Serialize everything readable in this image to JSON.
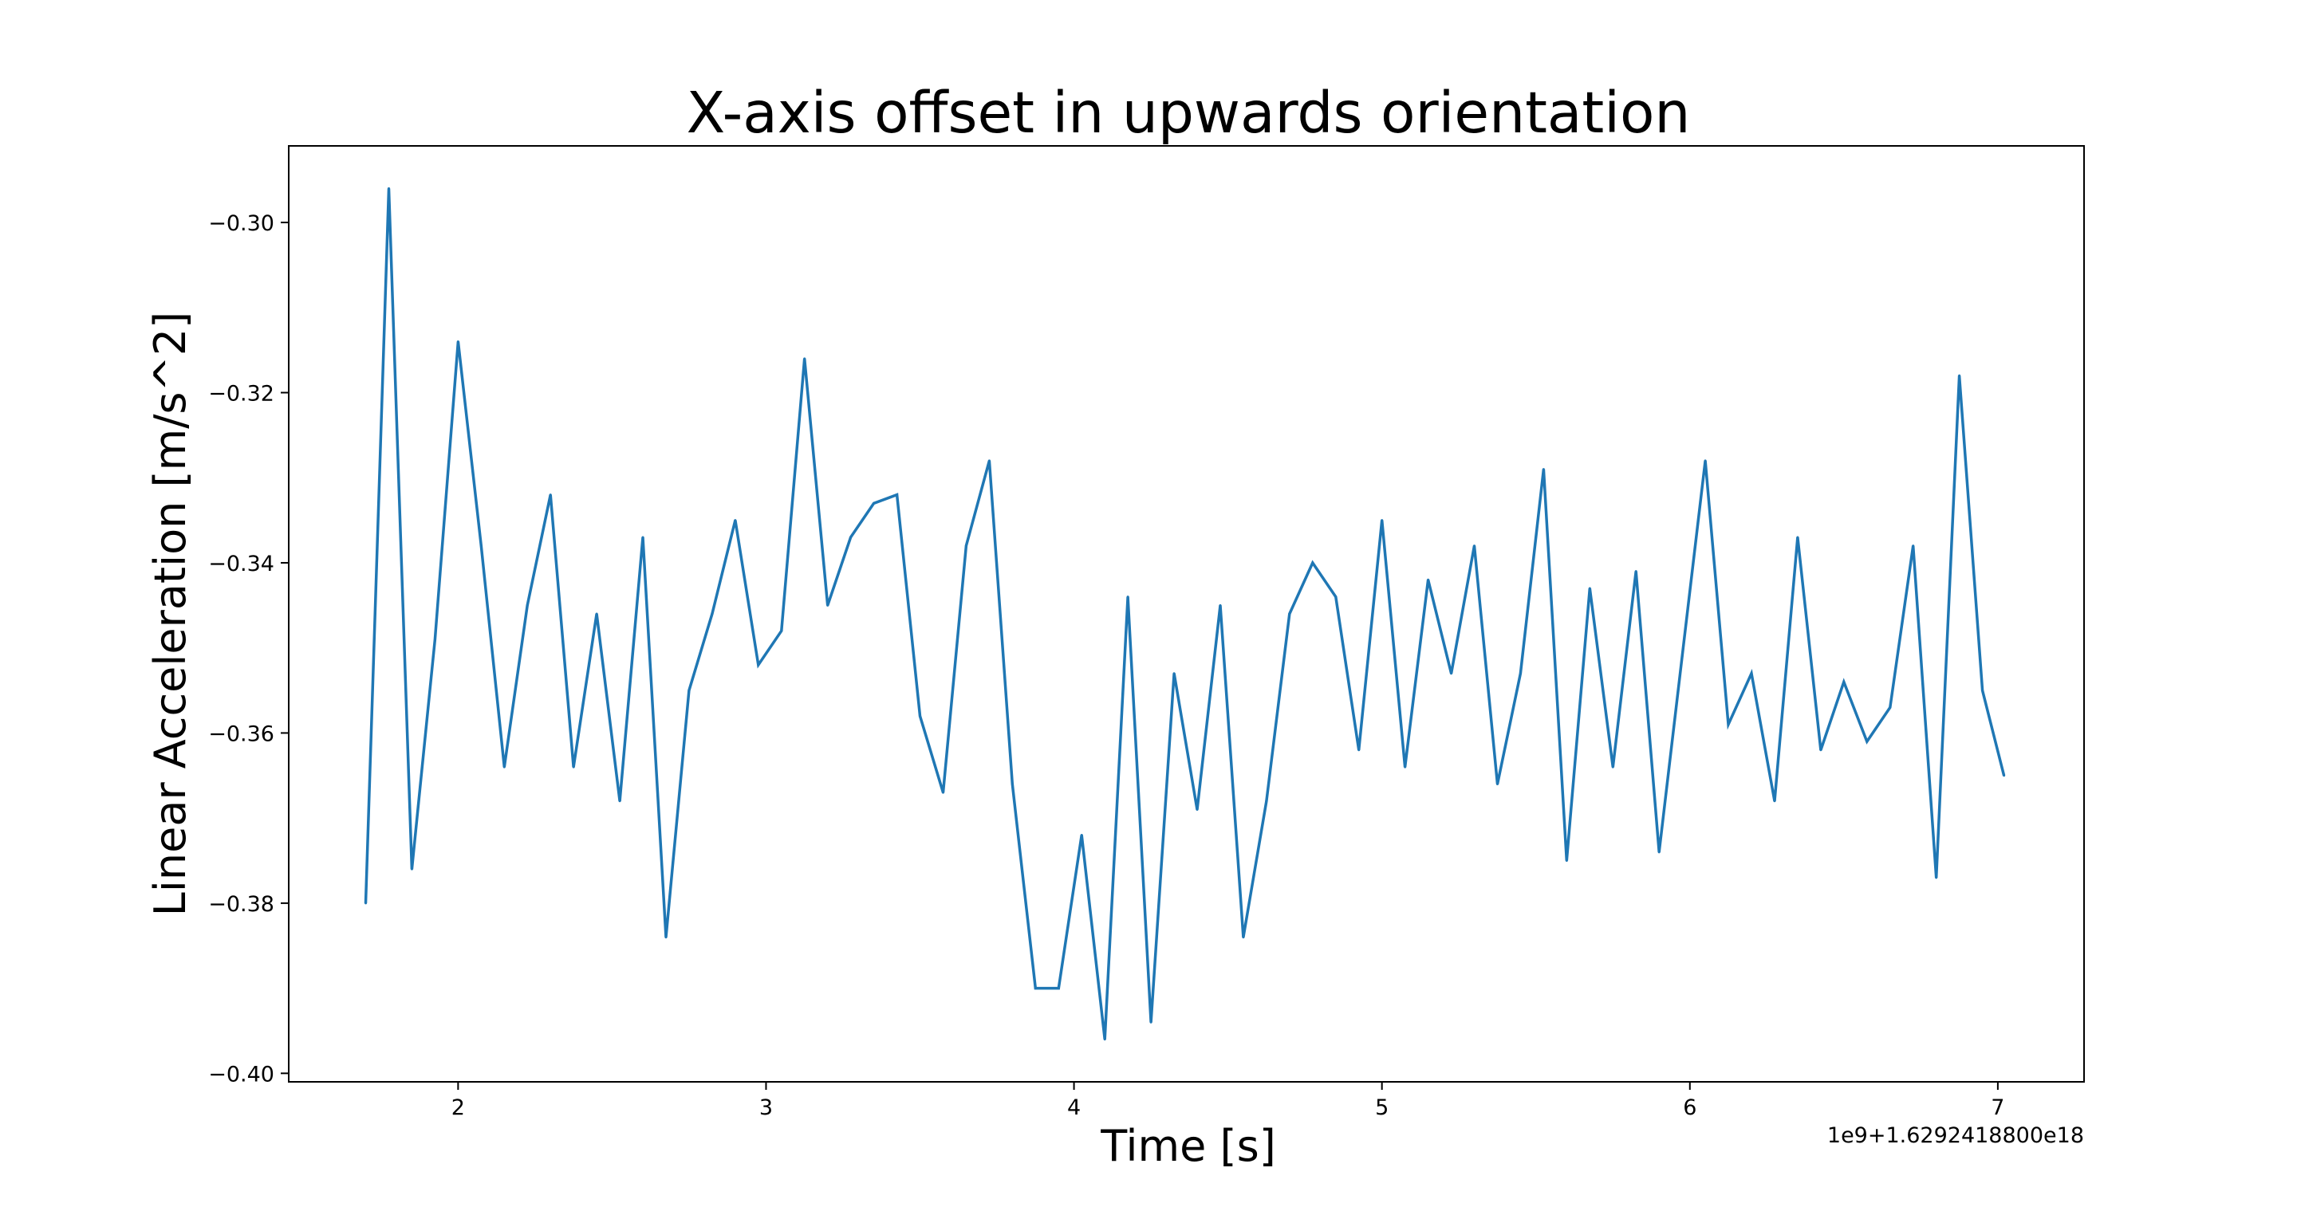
{
  "chart_data": {
    "type": "line",
    "title": "X-axis offset in upwards orientation",
    "xlabel": "Time [s]",
    "ylabel": "Linear Acceleration [m/s^2]",
    "x_offset_text": "1e9+1.6292418800e18",
    "xlim": [
      1.45,
      7.28
    ],
    "ylim": [
      -0.401,
      -0.291
    ],
    "x_ticks": [
      2,
      3,
      4,
      5,
      6,
      7
    ],
    "x_tick_labels": [
      "2",
      "3",
      "4",
      "5",
      "6",
      "7"
    ],
    "y_ticks": [
      -0.3,
      -0.32,
      -0.34,
      -0.36,
      -0.38,
      -0.4
    ],
    "y_tick_labels": [
      "−0.30",
      "−0.32",
      "−0.34",
      "−0.36",
      "−0.38",
      "−0.40"
    ],
    "grid": false,
    "colors": {
      "line": "#1f77b4"
    },
    "series": [
      {
        "x": [
          1.7,
          1.775,
          1.85,
          1.925,
          2.0,
          2.075,
          2.15,
          2.225,
          2.3,
          2.375,
          2.45,
          2.525,
          2.6,
          2.675,
          2.75,
          2.825,
          2.9,
          2.975,
          3.05,
          3.125,
          3.2,
          3.275,
          3.35,
          3.425,
          3.5,
          3.575,
          3.65,
          3.725,
          3.8,
          3.875,
          3.95,
          4.025,
          4.1,
          4.175,
          4.25,
          4.325,
          4.4,
          4.475,
          4.55,
          4.625,
          4.7,
          4.775,
          4.85,
          4.925,
          5.0,
          5.075,
          5.15,
          5.225,
          5.3,
          5.375,
          5.45,
          5.525,
          5.6,
          5.675,
          5.75,
          5.825,
          5.9,
          5.975,
          6.05,
          6.125,
          6.2,
          6.275,
          6.35,
          6.425,
          6.5,
          6.575,
          6.65,
          6.725,
          6.8,
          6.875,
          6.95,
          7.02
        ],
        "y": [
          -0.38,
          -0.296,
          -0.376,
          -0.349,
          -0.314,
          -0.338,
          -0.364,
          -0.345,
          -0.332,
          -0.364,
          -0.346,
          -0.368,
          -0.337,
          -0.384,
          -0.355,
          -0.346,
          -0.335,
          -0.352,
          -0.348,
          -0.316,
          -0.345,
          -0.337,
          -0.333,
          -0.332,
          -0.358,
          -0.367,
          -0.338,
          -0.328,
          -0.366,
          -0.39,
          -0.39,
          -0.372,
          -0.396,
          -0.344,
          -0.394,
          -0.353,
          -0.369,
          -0.345,
          -0.384,
          -0.368,
          -0.346,
          -0.34,
          -0.344,
          -0.362,
          -0.335,
          -0.364,
          -0.342,
          -0.353,
          -0.338,
          -0.366,
          -0.353,
          -0.329,
          -0.375,
          -0.343,
          -0.364,
          -0.341,
          -0.374,
          -0.351,
          -0.328,
          -0.359,
          -0.353,
          -0.368,
          -0.337,
          -0.362,
          -0.354,
          -0.361,
          -0.357,
          -0.338,
          -0.377,
          -0.318,
          -0.355,
          -0.365
        ]
      }
    ]
  }
}
